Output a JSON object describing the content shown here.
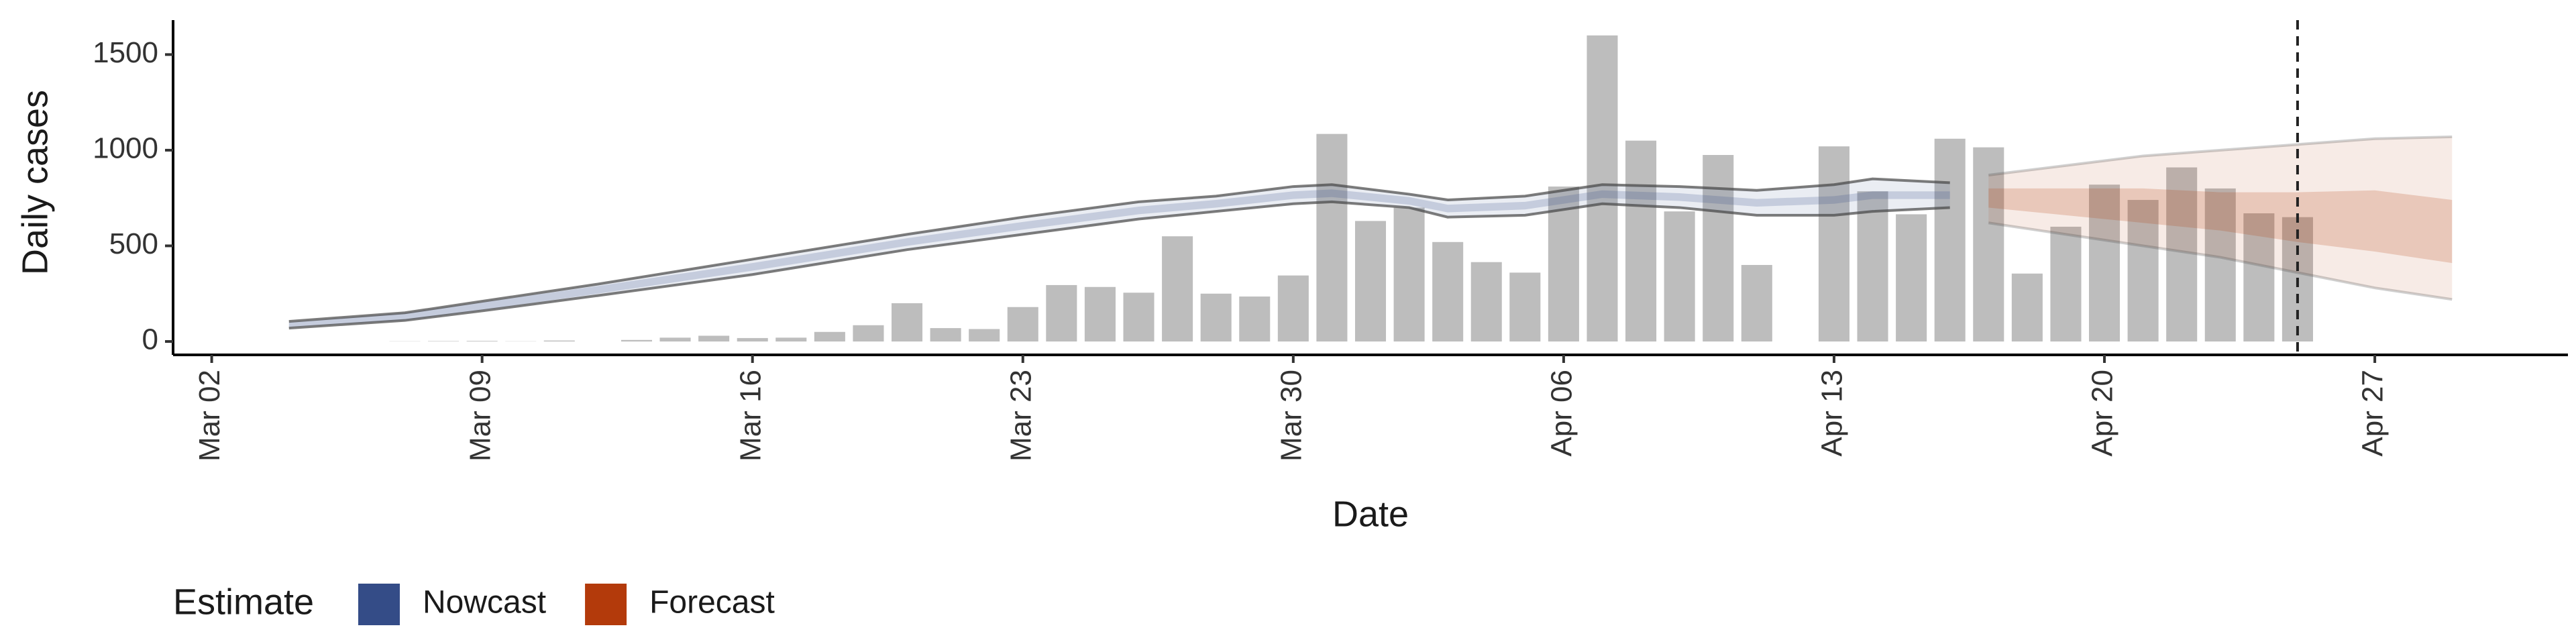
{
  "chart_data": {
    "type": "bar",
    "x_label": "Date",
    "y_label": "Daily cases",
    "color": "#bdbdbd",
    "x": [
      "Mar 07",
      "Mar 08",
      "Mar 09",
      "Mar 10",
      "Mar 11",
      "Mar 12",
      "Mar 13",
      "Mar 14",
      "Mar 15",
      "Mar 16",
      "Mar 17",
      "Mar 18",
      "Mar 19",
      "Mar 20",
      "Mar 21",
      "Mar 22",
      "Mar 23",
      "Mar 24",
      "Mar 25",
      "Mar 26",
      "Mar 27",
      "Mar 28",
      "Mar 29",
      "Mar 30",
      "Mar 31",
      "Apr 01",
      "Apr 02",
      "Apr 03",
      "Apr 04",
      "Apr 05",
      "Apr 06",
      "Apr 07",
      "Apr 08",
      "Apr 09",
      "Apr 10",
      "Apr 11",
      "Apr 12",
      "Apr 13",
      "Apr 14",
      "Apr 15",
      "Apr 16",
      "Apr 17",
      "Apr 18",
      "Apr 19",
      "Apr 20",
      "Apr 21",
      "Apr 22",
      "Apr 23",
      "Apr 24",
      "Apr 25"
    ],
    "values": [
      1,
      2,
      3,
      1,
      5,
      null,
      8,
      20,
      30,
      18,
      20,
      50,
      85,
      200,
      70,
      65,
      180,
      295,
      285,
      255,
      550,
      250,
      235,
      345,
      1085,
      630,
      700,
      520,
      415,
      360,
      810,
      1600,
      1050,
      680,
      975,
      400,
      null,
      1020,
      785,
      665,
      1060,
      1015,
      355,
      600,
      820,
      740,
      910,
      800,
      670,
      650
    ],
    "xlim": [
      "Mar 01",
      "May 02"
    ],
    "xticks": [
      "Mar 02",
      "Mar 09",
      "Mar 16",
      "Mar 23",
      "Mar 30",
      "Apr 06",
      "Apr 13",
      "Apr 20",
      "Apr 27"
    ],
    "ylim": [
      -70,
      1680
    ],
    "yticks": [
      0,
      500,
      1000,
      1500
    ],
    "vline": "Apr 25",
    "legend_title": "Estimate",
    "ribbons": [
      {
        "name": "Nowcast",
        "color": "#344c87",
        "x": [
          "Mar 04",
          "Mar 07",
          "Mar 09",
          "Mar 12",
          "Mar 16",
          "Mar 20",
          "Mar 23",
          "Mar 26",
          "Mar 28",
          "Mar 30",
          "Mar 31",
          "Apr 02",
          "Apr 03",
          "Apr 05",
          "Apr 07",
          "Apr 09",
          "Apr 11",
          "Apr 13",
          "Apr 14",
          "Apr 16"
        ],
        "upper": [
          105,
          150,
          210,
          300,
          430,
          560,
          650,
          730,
          760,
          810,
          820,
          770,
          740,
          760,
          820,
          810,
          790,
          820,
          850,
          830
        ],
        "lower": [
          70,
          110,
          160,
          240,
          350,
          480,
          560,
          640,
          680,
          720,
          730,
          700,
          650,
          660,
          720,
          700,
          660,
          660,
          680,
          700
        ],
        "inner_upper": [
          100,
          150,
          205,
          290,
          410,
          540,
          625,
          705,
          740,
          785,
          795,
          755,
          715,
          730,
          790,
          775,
          745,
          760,
          785,
          785
        ],
        "inner_lower": [
          76,
          110,
          165,
          250,
          370,
          500,
          585,
          665,
          700,
          745,
          755,
          715,
          675,
          690,
          750,
          735,
          705,
          720,
          745,
          745
        ]
      },
      {
        "name": "Forecast",
        "color": "#b33a0b",
        "x": [
          "Apr 17",
          "Apr 19",
          "Apr 21",
          "Apr 23",
          "Apr 25",
          "Apr 27",
          "Apr 29"
        ],
        "upper": [
          870,
          920,
          970,
          1000,
          1030,
          1060,
          1070
        ],
        "lower": [
          620,
          560,
          500,
          440,
          360,
          280,
          220
        ],
        "inner_upper": [
          800,
          800,
          800,
          780,
          780,
          790,
          740
        ],
        "inner_lower": [
          700,
          660,
          620,
          580,
          520,
          470,
          410
        ]
      }
    ]
  }
}
